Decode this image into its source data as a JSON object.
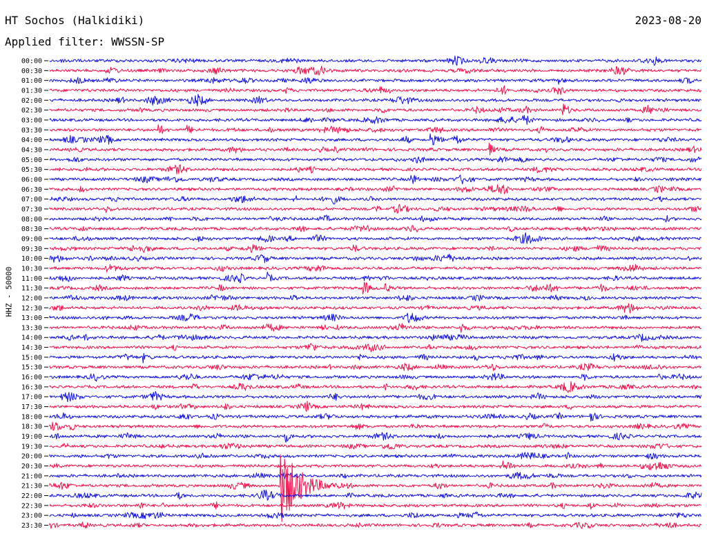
{
  "header": {
    "station": "HT Sochos (Halkidiki)",
    "date": "2023-08-20",
    "filter": "Applied filter: WWSSN-SP"
  },
  "chart_data": {
    "type": "line",
    "title": "HT Sochos (Halkidiki)",
    "subtitle": "Applied filter: WWSSN-SP",
    "date": "2023-08-20",
    "ylabel": "HHZ - 50000",
    "xlabel": "",
    "row_labels": [
      "00:00",
      "00:30",
      "01:00",
      "01:30",
      "02:00",
      "02:30",
      "03:00",
      "03:30",
      "04:00",
      "04:30",
      "05:00",
      "05:30",
      "06:00",
      "06:30",
      "07:00",
      "07:30",
      "08:00",
      "08:30",
      "09:00",
      "09:30",
      "10:00",
      "10:30",
      "11:00",
      "11:30",
      "12:00",
      "12:30",
      "13:00",
      "13:30",
      "14:00",
      "14:30",
      "15:00",
      "15:30",
      "16:00",
      "16:30",
      "17:00",
      "17:30",
      "18:00",
      "18:30",
      "19:00",
      "19:30",
      "20:00",
      "20:30",
      "21:00",
      "21:30",
      "22:00",
      "22:30",
      "23:00",
      "23:30"
    ],
    "row_duration_minutes": 30,
    "colors": [
      "#1010e0",
      "#f0104a"
    ],
    "events": [
      {
        "row": "00:00",
        "minute": 27.8,
        "amplitude": 6
      },
      {
        "row": "01:00",
        "minute": 23.4,
        "amplitude": 4
      },
      {
        "row": "02:30",
        "minute": 23.6,
        "amplitude": 12
      },
      {
        "row": "02:30",
        "minute": 27.5,
        "amplitude": 5
      },
      {
        "row": "03:30",
        "minute": 5.0,
        "amplitude": 8
      },
      {
        "row": "03:30",
        "minute": 6.3,
        "amplitude": 7
      },
      {
        "row": "03:30",
        "minute": 10.0,
        "amplitude": 5
      },
      {
        "row": "04:00",
        "minute": 17.5,
        "amplitude": 12
      },
      {
        "row": "04:00",
        "minute": 18.6,
        "amplitude": 10
      },
      {
        "row": "04:30",
        "minute": 20.2,
        "amplitude": 9
      },
      {
        "row": "06:00",
        "minute": 16.6,
        "amplitude": 11
      },
      {
        "row": "06:30",
        "minute": 1.4,
        "amplitude": 4
      },
      {
        "row": "07:30",
        "minute": 2.6,
        "amplitude": 5
      },
      {
        "row": "08:00",
        "minute": 17.5,
        "amplitude": 4
      },
      {
        "row": "09:30",
        "minute": 14.0,
        "amplitude": 4
      },
      {
        "row": "10:00",
        "minute": 2.6,
        "amplitude": 4
      },
      {
        "row": "11:00",
        "minute": 10.0,
        "amplitude": 7
      },
      {
        "row": "11:30",
        "minute": 14.4,
        "amplitude": 14
      },
      {
        "row": "11:30",
        "minute": 15.4,
        "amplitude": 5
      },
      {
        "row": "13:30",
        "minute": 18.9,
        "amplitude": 8
      },
      {
        "row": "15:00",
        "minute": 4.3,
        "amplitude": 6
      },
      {
        "row": "18:00",
        "minute": 24.8,
        "amplitude": 14
      },
      {
        "row": "19:00",
        "minute": 10.8,
        "amplitude": 10
      },
      {
        "row": "20:00",
        "minute": 2.6,
        "amplitude": 4
      },
      {
        "row": "21:30",
        "minute": 10.6,
        "amplitude": 60,
        "duration_minutes": 1.6
      }
    ]
  }
}
